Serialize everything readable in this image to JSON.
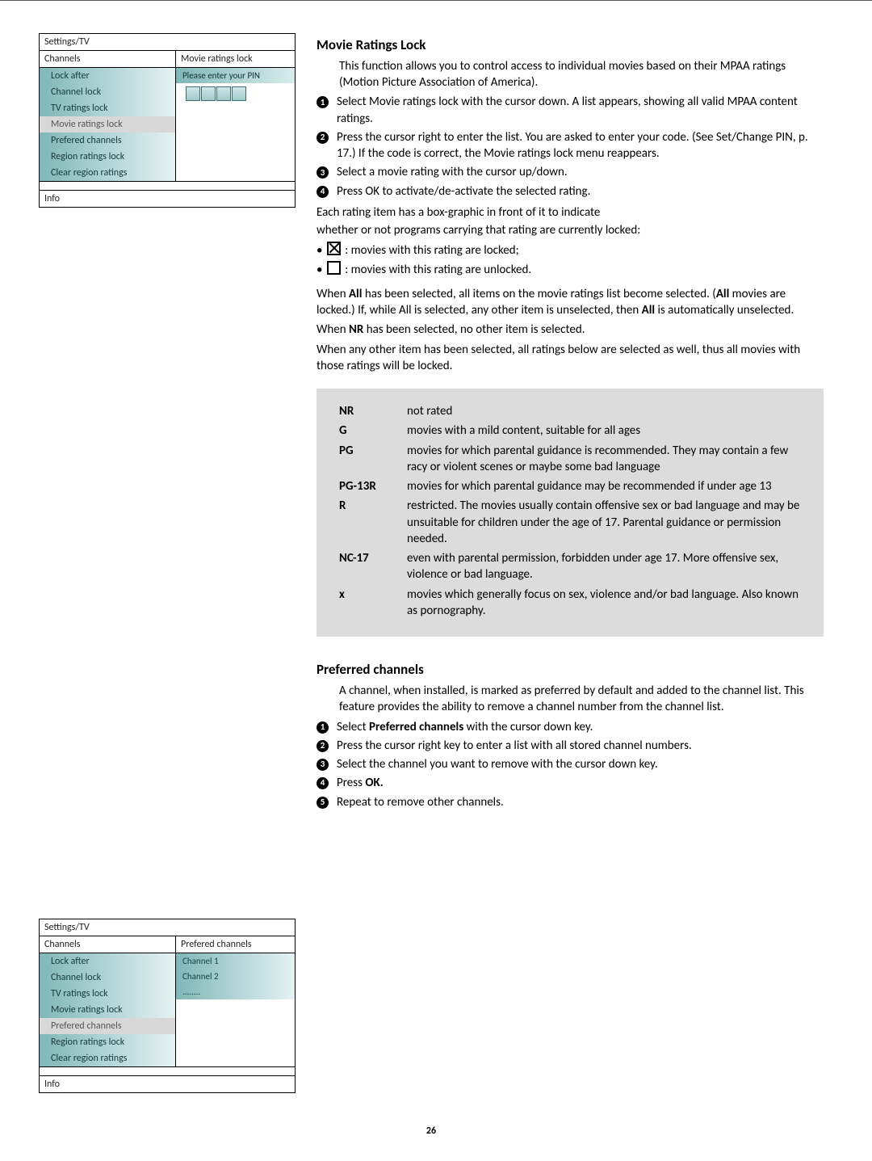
{
  "pageNumber": "26",
  "panel1": {
    "breadcrumb": "Settings/TV",
    "leftHeader": "Channels",
    "rightHeader": "Movie ratings lock",
    "items": [
      {
        "label": "Lock after",
        "selected": false
      },
      {
        "label": "Channel lock",
        "selected": false
      },
      {
        "label": "TV ratings lock",
        "selected": false
      },
      {
        "label": "Movie ratings lock",
        "selected": true
      },
      {
        "label": "Prefered channels",
        "selected": false
      },
      {
        "label": "Region ratings lock",
        "selected": false
      },
      {
        "label": "Clear region ratings",
        "selected": false
      }
    ],
    "pinPrompt": "Please enter your PIN",
    "info": "Info"
  },
  "panel2": {
    "breadcrumb": "Settings/TV",
    "leftHeader": "Channels",
    "rightHeader": "Prefered channels",
    "items": [
      {
        "label": "Lock after",
        "selected": false
      },
      {
        "label": "Channel lock",
        "selected": false
      },
      {
        "label": "TV ratings lock",
        "selected": false
      },
      {
        "label": "Movie ratings lock",
        "selected": false
      },
      {
        "label": "Prefered channels",
        "selected": true
      },
      {
        "label": "Region ratings lock",
        "selected": false
      },
      {
        "label": "Clear region ratings",
        "selected": false
      }
    ],
    "channels": [
      "Channel 1",
      "Channel 2",
      "........"
    ],
    "info": "Info"
  },
  "section1": {
    "title": "Movie Ratings Lock",
    "intro": "This function allows you to control access to individual movies based on their MPAA ratings (Motion Picture Association of America).",
    "steps": [
      "Select Movie ratings lock with the cursor down. A list appears, showing all valid MPAA content ratings.",
      "Press the cursor right to enter the list. You are asked to enter your code. (See Set/Change PIN, p. 17.) If the code is correct, the Movie ratings lock menu reappears.",
      "Select a movie rating with the cursor up/down.",
      "Press OK to activate/de-activate the selected rating."
    ],
    "boxIntro1": "Each rating item has a box-graphic in front of it to indicate",
    "boxIntro2": "whether or not programs carrying that rating are currently locked:",
    "lockedText": ": movies with this rating are locked;",
    "unlockedText": ": movies with this rating are unlocked.",
    "allPara_pre": "When ",
    "allPara_b1": "All",
    "allPara_mid1": " has been selected, all items on the movie ratings list become selected. (",
    "allPara_b2": "All",
    "allPara_mid2": " movies are locked.) If, while All is selected, any other item is unselected, then ",
    "allPara_b3": "All",
    "allPara_end": " is automatically unselected.",
    "nrPara_pre": "When ",
    "nrPara_b": "NR",
    "nrPara_end": " has been selected, no other item is selected.",
    "belowPara": "When any other item has been selected, all ratings below are selected as well, thus all movies with those ratings will be locked."
  },
  "ratings": [
    {
      "code": "NR",
      "desc": "not rated"
    },
    {
      "code": "G",
      "desc": "movies with a mild content, suitable for all ages"
    },
    {
      "code": "PG",
      "desc": "movies for which parental guidance is recommended. They may contain a few racy or violent scenes or maybe some bad language"
    },
    {
      "code": "PG-13R",
      "desc": "movies for which parental guidance may be recommended if under age 13"
    },
    {
      "code": "R",
      "desc": "restricted. The movies usually contain offensive sex or bad language and may be unsuitable for children under the age of 17. Parental guidance or permission needed."
    },
    {
      "code": "NC-17",
      "desc": "even with parental permission, forbidden under age 17. More offensive sex, violence or bad language."
    },
    {
      "code": "x",
      "desc": "movies which generally focus on sex, violence and/or bad language. Also known as pornography."
    }
  ],
  "section2": {
    "title": "Preferred channels",
    "intro": "A channel, when installed, is marked as preferred by default and added to the channel list. This feature provides the ability to remove a channel number from the channel list.",
    "steps": [
      {
        "pre": "Select ",
        "b": "Preferred channels",
        "post": " with the cursor down key."
      },
      {
        "pre": "Press the cursor right key to enter a list with all stored channel numbers.",
        "b": "",
        "post": ""
      },
      {
        "pre": "Select the channel you want to remove with the cursor down key.",
        "b": "",
        "post": ""
      },
      {
        "pre": "Press ",
        "b": "OK.",
        "post": ""
      },
      {
        "pre": "Repeat to remove other channels.",
        "b": "",
        "post": ""
      }
    ]
  }
}
